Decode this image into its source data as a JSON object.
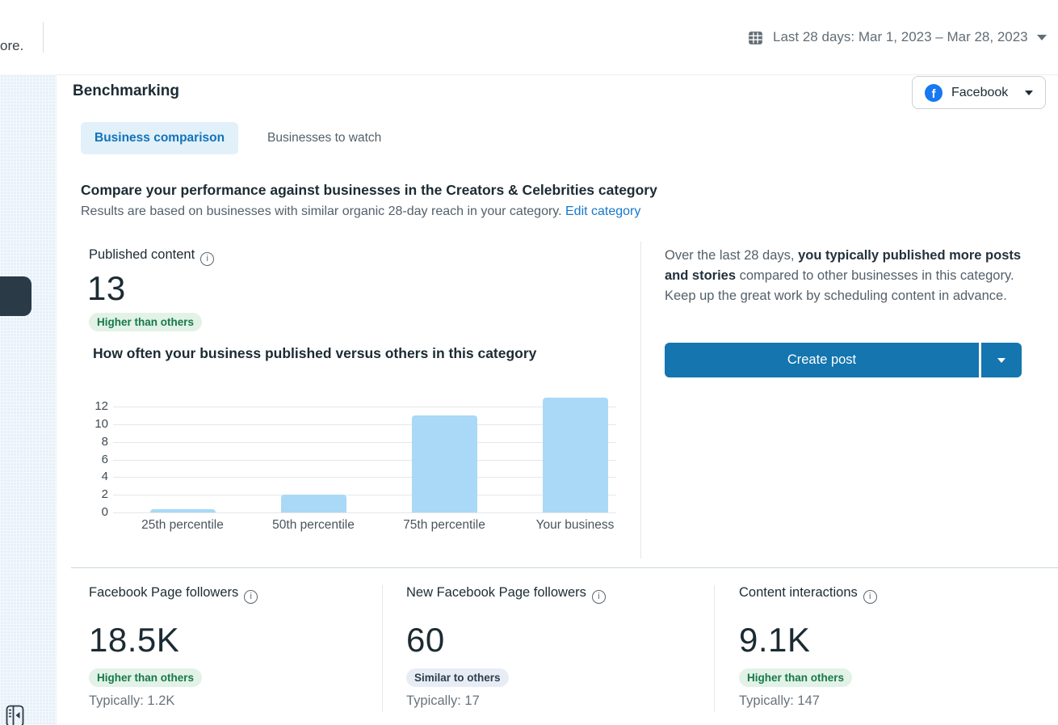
{
  "topbar": {
    "left_fragment": "ore.",
    "date_range": "Last 28 days: Mar 1, 2023 – Mar 28, 2023"
  },
  "header": {
    "title": "Benchmarking",
    "platform_selector": {
      "label": "Facebook",
      "icon": "facebook-logo",
      "logo_letter": "f"
    }
  },
  "tabs": [
    {
      "label": "Business comparison",
      "active": true
    },
    {
      "label": "Businesses to watch",
      "active": false
    }
  ],
  "section": {
    "heading": "Compare your performance against businesses in the Creators & Celebrities category",
    "subtext": "Results are based on businesses with similar organic 28-day reach in your category. ",
    "link": "Edit category"
  },
  "published": {
    "label": "Published content",
    "value": "13",
    "badge": "Higher than others",
    "badge_type": "positive",
    "chart_heading": "How often your business published versus others in this category"
  },
  "chart_data": {
    "type": "bar",
    "title": "How often your business published versus others in this category",
    "categories": [
      "25th percentile",
      "50th percentile",
      "75th percentile",
      "Your business"
    ],
    "values": [
      0.4,
      2,
      11,
      13
    ],
    "xlabel": "",
    "ylabel": "",
    "yticks": [
      0,
      2,
      4,
      6,
      8,
      10,
      12
    ],
    "ylim": [
      0,
      13.3
    ],
    "bar_color": "#a9d9f7",
    "grid": true,
    "legend": false
  },
  "insight": {
    "text_prefix": "Over the last 28 days, ",
    "text_bold": "you typically published more posts and stories",
    "text_suffix": " compared to other businesses in this category. Keep up the great work by scheduling content in advance.",
    "button_label": "Create post"
  },
  "metrics": [
    {
      "label": "Facebook Page followers",
      "value": "18.5K",
      "badge": "Higher than others",
      "badge_type": "positive",
      "typical": "Typically: 1.2K"
    },
    {
      "label": "New Facebook Page followers",
      "value": "60",
      "badge": "Similar to others",
      "badge_type": "neutral",
      "typical": "Typically: 17"
    },
    {
      "label": "Content interactions",
      "value": "9.1K",
      "badge": "Higher than others",
      "badge_type": "positive",
      "typical": "Typically: 147"
    }
  ],
  "colors": {
    "accent_blue": "#1173b9",
    "button_blue": "#1475af",
    "bar_blue": "#a9d9f7",
    "link_blue": "#1878c8",
    "facebook_blue": "#1877f2",
    "badge_positive_bg": "#e2f2e7",
    "badge_positive_text": "#17784a",
    "badge_neutral_bg": "#e8edf5",
    "badge_neutral_text": "#2c3e4d",
    "drawer_dark": "#2b3a47"
  }
}
